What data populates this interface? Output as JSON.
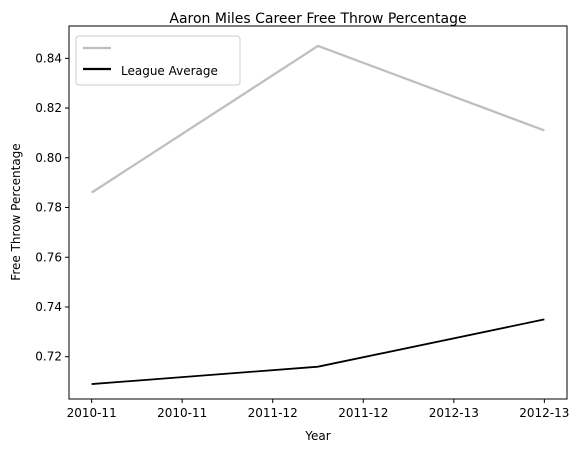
{
  "chart_data": {
    "type": "line",
    "title": "Aaron Miles  Career Free Throw Percentage",
    "xlabel": "Year",
    "ylabel": "Free Throw Percentage",
    "x_ticks": [
      "2010-11",
      "2010-11",
      "2011-12",
      "2011-12",
      "2012-13",
      "2012-13"
    ],
    "x": [
      0,
      1,
      2
    ],
    "ylim": [
      0.703,
      0.853
    ],
    "y_ticks": [
      "0.72",
      "0.74",
      "0.76",
      "0.78",
      "0.80",
      "0.82",
      "0.84"
    ],
    "grid": false,
    "legend": {
      "position": "top-left"
    },
    "series": [
      {
        "name": "",
        "color": "#bfbfbf",
        "values": [
          0.786,
          0.845,
          0.811
        ]
      },
      {
        "name": "League Average",
        "color": "#000000",
        "values": [
          0.709,
          0.716,
          0.735
        ]
      }
    ]
  }
}
